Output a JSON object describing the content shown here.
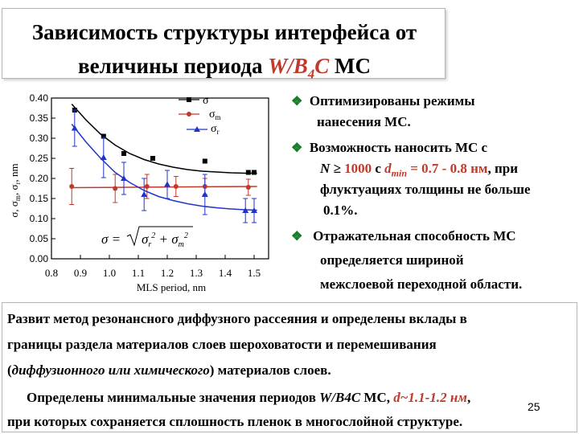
{
  "title": {
    "line1": "Зависимость структуры интерфейса от",
    "line2_prefix": "величины периода ",
    "line2_material": "W/B",
    "line2_sub": "4",
    "line2_material_end": "C",
    "line2_suffix": " МС"
  },
  "chart_data": {
    "type": "line",
    "xlabel": "MLS period, nm",
    "ylabel": "σ, σm, σr, nm",
    "x_ticks": [
      "0.8",
      "0.9",
      "1.0",
      "1.1",
      "1.2",
      "1.3",
      "1.4",
      "1.5"
    ],
    "y_ticks": [
      "0.00",
      "0.05",
      "0.10",
      "0.15",
      "0.20",
      "0.25",
      "0.30",
      "0.35",
      "0.40"
    ],
    "xlim": [
      0.8,
      1.55
    ],
    "ylim": [
      0.0,
      0.4
    ],
    "grid": false,
    "legend_position": "top",
    "formula": "σ = √(σr² + σm²)",
    "series": [
      {
        "name": "σ",
        "color": "#000000",
        "marker": "square",
        "points": [
          [
            0.88,
            0.37
          ],
          [
            0.98,
            0.305
          ],
          [
            1.05,
            0.262
          ],
          [
            1.15,
            0.25
          ],
          [
            1.33,
            0.243
          ],
          [
            1.48,
            0.215
          ],
          [
            1.5,
            0.215
          ]
        ],
        "fit": [
          [
            0.87,
            0.385
          ],
          [
            0.92,
            0.345
          ],
          [
            0.97,
            0.31
          ],
          [
            1.02,
            0.283
          ],
          [
            1.07,
            0.262
          ],
          [
            1.12,
            0.247
          ],
          [
            1.17,
            0.236
          ],
          [
            1.22,
            0.228
          ],
          [
            1.27,
            0.222
          ],
          [
            1.32,
            0.218
          ],
          [
            1.37,
            0.216
          ],
          [
            1.42,
            0.214
          ],
          [
            1.47,
            0.213
          ],
          [
            1.51,
            0.213
          ]
        ]
      },
      {
        "name": "σm",
        "color": "#c0392b",
        "marker": "circle",
        "points": [
          [
            0.87,
            0.18
          ],
          [
            1.02,
            0.175
          ],
          [
            1.13,
            0.18
          ],
          [
            1.23,
            0.18
          ],
          [
            1.33,
            0.18
          ],
          [
            1.48,
            0.178
          ]
        ],
        "errors": [
          0.045,
          0.035,
          0.03,
          0.025,
          0.02,
          0.02
        ],
        "fit": [
          [
            0.87,
            0.177
          ],
          [
            1.51,
            0.18
          ]
        ]
      },
      {
        "name": "σr",
        "color": "#2233cc",
        "marker": "triangle",
        "points": [
          [
            0.88,
            0.325
          ],
          [
            0.98,
            0.252
          ],
          [
            1.05,
            0.2
          ],
          [
            1.12,
            0.16
          ],
          [
            1.2,
            0.185
          ],
          [
            1.33,
            0.16
          ],
          [
            1.47,
            0.12
          ],
          [
            1.5,
            0.12
          ]
        ],
        "errors": [
          0.045,
          0.05,
          0.04,
          0.04,
          0.035,
          0.05,
          0.03,
          0.03
        ],
        "fit": [
          [
            0.87,
            0.335
          ],
          [
            0.92,
            0.29
          ],
          [
            0.97,
            0.25
          ],
          [
            1.02,
            0.215
          ],
          [
            1.07,
            0.19
          ],
          [
            1.12,
            0.17
          ],
          [
            1.17,
            0.155
          ],
          [
            1.22,
            0.145
          ],
          [
            1.27,
            0.137
          ],
          [
            1.32,
            0.131
          ],
          [
            1.37,
            0.127
          ],
          [
            1.42,
            0.124
          ],
          [
            1.47,
            0.122
          ],
          [
            1.51,
            0.121
          ]
        ]
      }
    ]
  },
  "bullets": {
    "b1_line1": "Оптимизированы режимы",
    "b1_line2": "нанесения МС.",
    "b2_line1": "Возможность наносить МС с",
    "b2_line2_a": "N ≥ ",
    "b2_line2_b": "1000",
    "b2_line2_c": " с ",
    "b2_line2_d": "d",
    "b2_line2_e": "min",
    "b2_line2_f": " = 0.7 - 0.8 нм",
    "b2_line2_g": ", при",
    "b2_line3": "флуктуациях толщины не больше",
    "b2_line4": "0.1%.",
    "b3_line1": "Отражательная способность МС",
    "b3_line2": "определяется шириной",
    "b3_line3": "межслоевой переходной области.",
    "marker": "❖"
  },
  "bottom": {
    "p1_line1": "Развит метод резонансного диффузного рассеяния и определены вклады в",
    "p1_line2": "границы раздела материалов слоев шероховатости и перемешивания",
    "p1_line3_a": "(",
    "p1_line3_b": "диффузионного или химического",
    "p1_line3_c": ") материалов слоев.",
    "p2_line1_a": "Определены минимальные значения периодов ",
    "p2_line1_b": "W/B4C",
    "p2_line1_c": " МС, ",
    "p2_line1_d": "d~1.1-1.2 нм",
    "p2_line1_e": ",",
    "p2_line2": "при которых сохраняется сплошность пленок в многослойной структуре.",
    "page_number": "25"
  }
}
